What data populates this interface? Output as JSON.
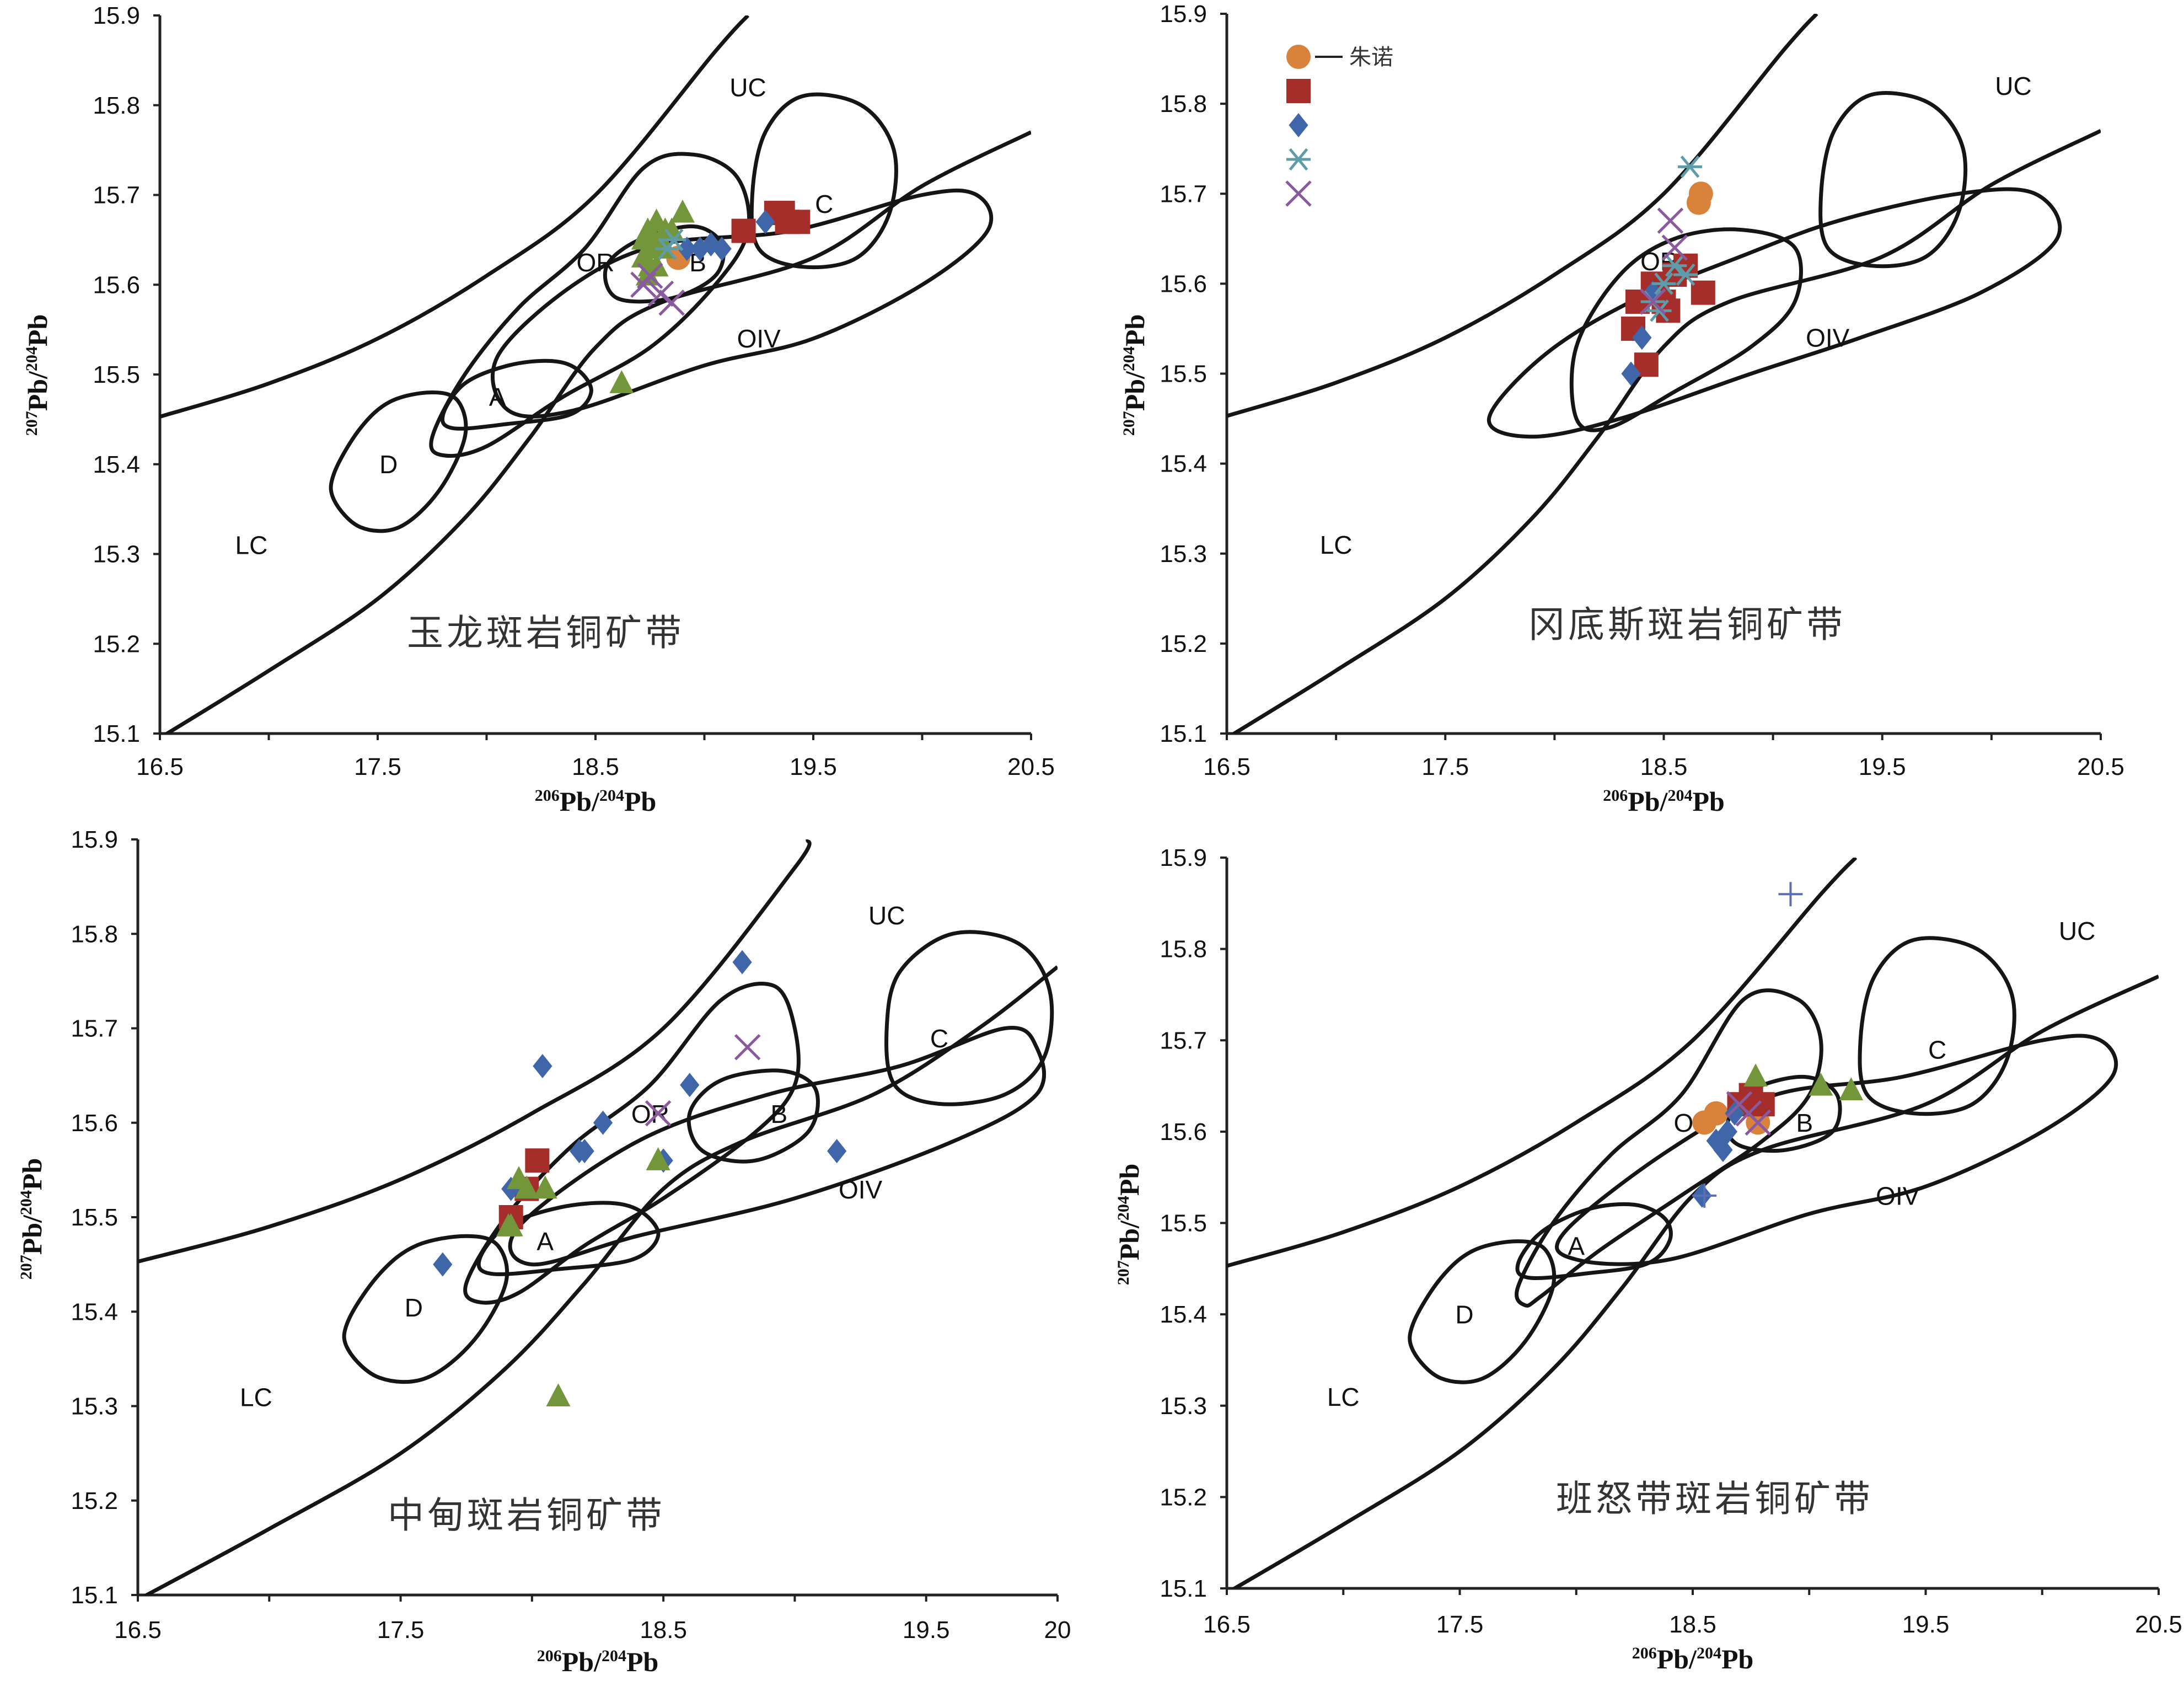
{
  "figure": {
    "colors": {
      "circle": "#D9823B",
      "square": "#A52D2A",
      "diamond": "#3E66A8",
      "triangle": "#74963A",
      "asterisk": "#5E9CAA",
      "cross": "#8A5A9E",
      "plus": "#5A6FB5",
      "curve": "#151515"
    }
  },
  "chart_data": [
    {
      "type": "scatter",
      "title": "玉龙斑岩铜矿带",
      "xlabel": "206Pb/204Pb",
      "ylabel": "207Pb/204Pb",
      "xlim": [
        16.5,
        20.5
      ],
      "ylim": [
        15.1,
        15.9
      ],
      "x_ticks": [
        "16.5",
        "17.5",
        "18.5",
        "19.5",
        "20.5"
      ],
      "y_ticks": [
        "15.1",
        "15.2",
        "15.3",
        "15.4",
        "15.5",
        "15.6",
        "15.7",
        "15.8",
        "15.9"
      ],
      "grid": false,
      "region_labels": [
        "UC",
        "C",
        "OR",
        "B",
        "OIV",
        "A",
        "D",
        "LC"
      ],
      "series": [
        {
          "marker": "circle",
          "x": [
            18.88
          ],
          "y": [
            15.63
          ]
        },
        {
          "marker": "square",
          "x": [
            19.18,
            19.33,
            19.36,
            19.38,
            19.43
          ],
          "y": [
            15.66,
            15.68,
            15.68,
            15.67,
            15.67
          ]
        },
        {
          "marker": "diamond",
          "x": [
            18.92,
            18.98,
            19.03,
            19.08,
            19.28
          ],
          "y": [
            15.64,
            15.64,
            15.645,
            15.64,
            15.67
          ]
        },
        {
          "marker": "triangle",
          "x": [
            18.72,
            18.74,
            18.75,
            18.77,
            18.78,
            18.8,
            18.82,
            18.85,
            18.9,
            18.72,
            18.74,
            18.76,
            18.78,
            18.8,
            18.62
          ],
          "y": [
            15.65,
            15.66,
            15.62,
            15.65,
            15.67,
            15.64,
            15.66,
            15.66,
            15.68,
            15.63,
            15.61,
            15.64,
            15.62,
            15.65,
            15.49
          ]
        },
        {
          "marker": "asterisk",
          "x": [
            18.86,
            18.83
          ],
          "y": [
            15.65,
            15.64
          ]
        },
        {
          "marker": "cross",
          "x": [
            18.75,
            18.8,
            18.85,
            18.72
          ],
          "y": [
            15.61,
            15.59,
            15.58,
            15.6
          ]
        }
      ]
    },
    {
      "type": "scatter",
      "title": "冈底斯斑岩铜矿带",
      "xlabel": "206Pb/204Pb",
      "ylabel": "207Pb/204Pb",
      "xlim": [
        16.5,
        20.5
      ],
      "ylim": [
        15.1,
        15.9
      ],
      "x_ticks": [
        "16.5",
        "17.5",
        "18.5",
        "19.5",
        "20.5"
      ],
      "y_ticks": [
        "15.1",
        "15.2",
        "15.3",
        "15.4",
        "15.5",
        "15.6",
        "15.7",
        "15.8",
        "15.9"
      ],
      "grid": false,
      "region_labels": [
        "UC",
        "OR",
        "OIV",
        "LC"
      ],
      "legend": {
        "position": "top-left",
        "label": "朱诺"
      },
      "series": [
        {
          "name": "朱诺",
          "marker": "circle",
          "x": [
            18.67,
            18.66
          ],
          "y": [
            15.7,
            15.69
          ]
        },
        {
          "marker": "square",
          "x": [
            18.36,
            18.42,
            18.45,
            18.5,
            18.55,
            18.6,
            18.68,
            18.38,
            18.52,
            18.47
          ],
          "y": [
            15.55,
            15.51,
            15.6,
            15.58,
            15.61,
            15.62,
            15.59,
            15.58,
            15.57,
            15.59
          ]
        },
        {
          "marker": "diamond",
          "x": [
            18.35,
            18.4,
            18.45
          ],
          "y": [
            15.5,
            15.54,
            15.59
          ]
        },
        {
          "marker": "asterisk",
          "x": [
            18.62,
            18.45,
            18.5,
            18.55,
            18.48,
            18.6
          ],
          "y": [
            15.73,
            15.58,
            15.6,
            15.62,
            15.57,
            15.61
          ]
        },
        {
          "marker": "cross",
          "x": [
            18.53,
            18.55,
            18.45
          ],
          "y": [
            15.67,
            15.64,
            15.58
          ]
        }
      ]
    },
    {
      "type": "scatter",
      "title": "中甸斑岩铜矿带",
      "xlabel": "206Pb/204Pb",
      "ylabel": "207Pb/204Pb",
      "xlim": [
        16.5,
        20
      ],
      "ylim": [
        15.1,
        15.9
      ],
      "x_ticks": [
        "16.5",
        "17.5",
        "18.5",
        "19.5",
        "20"
      ],
      "y_ticks": [
        "15.1",
        "15.2",
        "15.3",
        "15.4",
        "15.5",
        "15.6",
        "15.7",
        "15.8",
        "15.9"
      ],
      "grid": false,
      "region_labels": [
        "UC",
        "C",
        "OR",
        "B",
        "OIV",
        "A",
        "D",
        "LC"
      ],
      "series": [
        {
          "marker": "square",
          "x": [
            17.92,
            17.98,
            18.02
          ],
          "y": [
            15.5,
            15.53,
            15.56
          ]
        },
        {
          "marker": "diamond",
          "x": [
            17.66,
            17.92,
            18.04,
            18.18,
            18.2,
            18.27,
            18.5,
            18.6,
            18.8,
            19.16
          ],
          "y": [
            15.45,
            15.53,
            15.66,
            15.57,
            15.57,
            15.6,
            15.56,
            15.64,
            15.77,
            15.57
          ]
        },
        {
          "marker": "triangle",
          "x": [
            17.92,
            17.95,
            17.98,
            18.05,
            18.48,
            18.1,
            17.91
          ],
          "y": [
            15.49,
            15.54,
            15.53,
            15.53,
            15.56,
            15.31,
            15.49
          ]
        },
        {
          "marker": "cross",
          "x": [
            18.82,
            18.48
          ],
          "y": [
            15.68,
            15.61
          ]
        }
      ]
    },
    {
      "type": "scatter",
      "title": "班怒带斑岩铜矿带",
      "xlabel": "206Pb/204Pb",
      "ylabel": "207Pb/204Pb",
      "xlim": [
        16.5,
        20.5
      ],
      "ylim": [
        15.1,
        15.9
      ],
      "x_ticks": [
        "16.5",
        "17.5",
        "18.5",
        "19.5",
        "20.5"
      ],
      "y_ticks": [
        "15.1",
        "15.2",
        "15.3",
        "15.4",
        "15.5",
        "15.6",
        "15.7",
        "15.8",
        "15.9"
      ],
      "grid": false,
      "region_labels": [
        "UC",
        "C",
        "OR",
        "B",
        "OIV",
        "A",
        "D",
        "LC"
      ],
      "series": [
        {
          "marker": "circle",
          "x": [
            18.55,
            18.6,
            18.78
          ],
          "y": [
            15.61,
            15.62,
            15.61
          ]
        },
        {
          "marker": "square",
          "x": [
            18.7,
            18.75,
            18.8
          ],
          "y": [
            15.63,
            15.64,
            15.63
          ]
        },
        {
          "marker": "diamond",
          "x": [
            18.54,
            18.6,
            18.63,
            18.65,
            18.68
          ],
          "y": [
            15.53,
            15.59,
            15.58,
            15.6,
            15.62
          ]
        },
        {
          "marker": "triangle",
          "x": [
            18.77,
            19.05,
            19.18
          ],
          "y": [
            15.66,
            15.65,
            15.645
          ]
        },
        {
          "marker": "cross",
          "x": [
            18.7,
            18.74,
            18.78
          ],
          "y": [
            15.63,
            15.62,
            15.61
          ]
        },
        {
          "marker": "plus",
          "x": [
            18.92,
            18.55
          ],
          "y": [
            15.86,
            15.53
          ]
        }
      ]
    }
  ]
}
